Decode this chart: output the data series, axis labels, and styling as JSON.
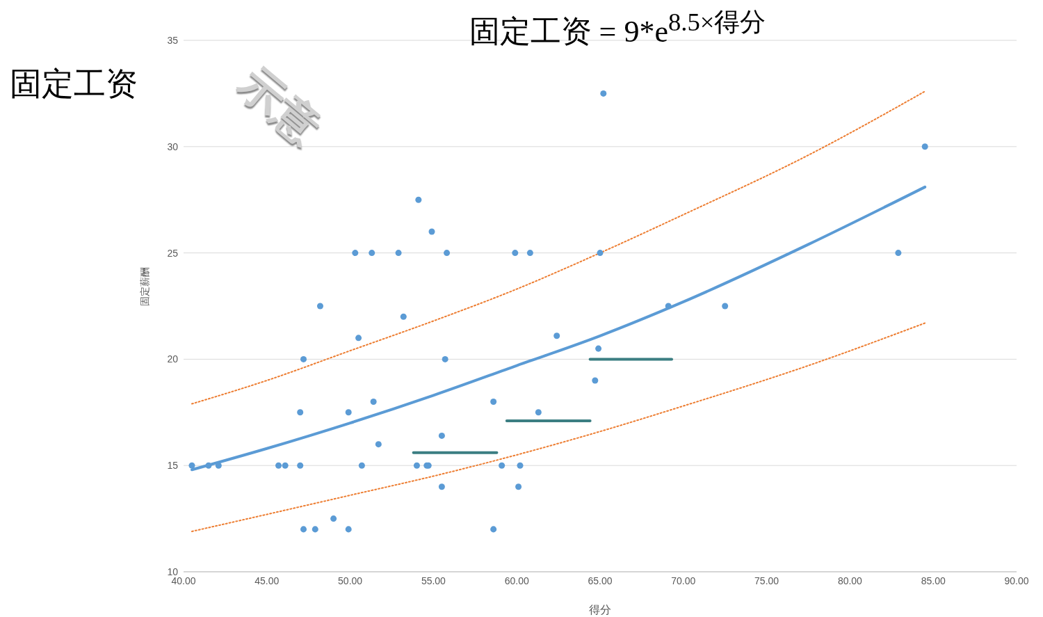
{
  "chart_data": {
    "type": "scatter",
    "title": "固定工资 = 9*e$^{8.5×得分}$",
    "xlabel": "得分",
    "ylabel": "固定薪酬",
    "annotations": [
      "固定工资",
      "示意"
    ],
    "xlim": [
      40,
      90
    ],
    "xticks": [
      {
        "value": 40,
        "label": "40.00"
      },
      {
        "value": 45,
        "label": "45.00"
      },
      {
        "value": 50,
        "label": "50.00"
      },
      {
        "value": 55,
        "label": "55.00"
      },
      {
        "value": 60,
        "label": "60.00"
      },
      {
        "value": 65,
        "label": "65.00"
      },
      {
        "value": 70,
        "label": "70.00"
      },
      {
        "value": 75,
        "label": "75.00"
      },
      {
        "value": 80,
        "label": "80.00"
      },
      {
        "value": 85,
        "label": "85.00"
      },
      {
        "value": 90,
        "label": "90.00"
      }
    ],
    "ylim": [
      10,
      35
    ],
    "yticks": [
      10,
      15,
      20,
      25,
      30,
      35
    ],
    "grid": "y",
    "series": [
      {
        "type": "line",
        "color": "#ed7d31",
        "line_style": "dotted",
        "x": [
          40.5,
          45,
          50,
          55,
          60,
          65,
          70,
          77.5,
          84.5
        ],
        "values": [
          17.9,
          19.0,
          20.4,
          21.8,
          23.3,
          25.0,
          26.8,
          29.6,
          32.6
        ]
      },
      {
        "type": "line",
        "color": "#ed7d31",
        "line_style": "dotted",
        "x": [
          40.5,
          45,
          50,
          55,
          60,
          65,
          70,
          77.5,
          84.5
        ],
        "values": [
          11.9,
          12.7,
          13.6,
          14.5,
          15.5,
          16.6,
          17.8,
          19.7,
          21.7
        ]
      },
      {
        "type": "line",
        "color": "#5b9bd5",
        "line_style": "solid",
        "x": [
          40.5,
          45,
          50,
          55,
          60,
          65,
          70,
          77.5,
          84.5
        ],
        "values": [
          14.8,
          15.8,
          17.0,
          18.3,
          19.7,
          21.1,
          22.7,
          25.4,
          28.1
        ]
      },
      {
        "type": "line",
        "color": "#3b7e82",
        "line_style": "solid",
        "x": [
          53.8,
          58.8
        ],
        "values": [
          15.6,
          15.6
        ]
      },
      {
        "type": "line",
        "color": "#3b7e82",
        "line_style": "solid",
        "x": [
          59.4,
          64.4
        ],
        "values": [
          17.1,
          17.1
        ]
      },
      {
        "type": "line",
        "color": "#3b7e82",
        "line_style": "solid",
        "x": [
          64.4,
          69.3
        ],
        "values": [
          20.0,
          20.0
        ]
      },
      {
        "marker": "circle",
        "color": "#5b9bd5",
        "x": [
          40.5,
          41.5,
          42.1,
          45.7,
          46.1,
          47.0,
          47.0,
          47.2,
          47.2,
          47.9,
          48.2,
          49.0,
          49.9,
          49.9,
          50.3,
          50.5,
          50.7,
          51.3,
          51.4,
          51.7,
          52.9,
          53.2,
          54.0,
          54.1,
          54.6,
          54.7,
          54.9,
          55.5,
          55.5,
          55.7,
          55.8,
          58.6,
          58.6,
          59.1,
          59.9,
          60.1,
          60.2,
          60.8,
          61.3,
          62.4,
          64.7,
          64.9,
          65.0,
          65.2,
          69.1,
          72.5,
          82.9,
          84.5
        ],
        "values": [
          15,
          15,
          15,
          15,
          15,
          15,
          17.5,
          20,
          12,
          12,
          22.5,
          12.5,
          12,
          17.5,
          25,
          21,
          15,
          25,
          18,
          16,
          25,
          22,
          15,
          27.5,
          15,
          15,
          26,
          16.4,
          14,
          20,
          25,
          12,
          18,
          15,
          25,
          14,
          15,
          25,
          17.5,
          21.1,
          19,
          20.5,
          25,
          32.5,
          22.5,
          22.5,
          25,
          30
        ]
      }
    ]
  }
}
